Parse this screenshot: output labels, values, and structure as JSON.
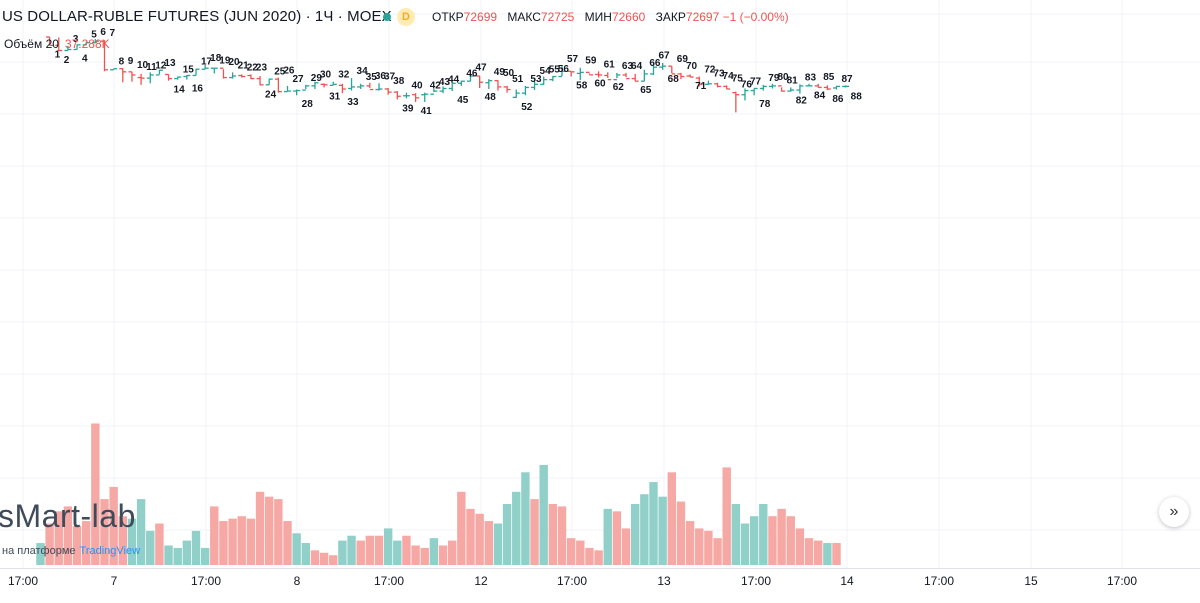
{
  "header": {
    "title": "US DOLLAR-RUBLE FUTURES (JUN 2020) · 1Ч · MOEX",
    "status_badge": "D",
    "ohlc": [
      {
        "label": "ОТКР",
        "value": "72699"
      },
      {
        "label": "МАКС",
        "value": "72725"
      },
      {
        "label": "МИН",
        "value": "72660"
      },
      {
        "label": "ЗАКР",
        "value": "72697 −1 (−0.00%)"
      }
    ]
  },
  "volume_legend": {
    "label": "Объём 20",
    "value": "37.288K"
  },
  "watermark": {
    "brand": "sMart-lab",
    "platform_prefix": "на платформе",
    "platform_name": "TradingView"
  },
  "scroll_button": {
    "glyph": "»"
  },
  "time_axis": {
    "labels": [
      "17:00",
      "7",
      "17:00",
      "8",
      "17:00",
      "12",
      "17:00",
      "13",
      "17:00",
      "14",
      "17:00",
      "15",
      "17:00"
    ]
  },
  "colors": {
    "up": "#26a69a",
    "down": "#ef5350",
    "up_volume": "#90d0c9",
    "down_volume": "#f6a8a4",
    "grid": "#f0f3fa"
  },
  "chart_data": {
    "type": "ohlc",
    "symbol": "US DOLLAR-RUBLE FUTURES (JUN 2020)",
    "interval": "1H",
    "exchange": "MOEX",
    "grid": true,
    "price_axis_visible": false,
    "bar_labels": [
      "1",
      "2",
      "3",
      "4",
      "5",
      "6",
      "7",
      "8",
      "9",
      "10",
      "11",
      "12",
      "13",
      "14",
      "15",
      "16",
      "17",
      "18",
      "19",
      "20",
      "21",
      "22",
      "23",
      "24",
      "25",
      "26",
      "27",
      "28",
      "29",
      "30",
      "31",
      "32",
      "33",
      "34",
      "35",
      "36",
      "37",
      "38",
      "39",
      "40",
      "41",
      "42",
      "43",
      "44",
      "45",
      "46",
      "47",
      "48",
      "49",
      "50",
      "51",
      "52",
      "53",
      "54",
      "55",
      "56",
      "57",
      "58",
      "59",
      "60",
      "61",
      "62",
      "63",
      "64",
      "65",
      "66",
      "67",
      "68",
      "69",
      "70",
      "71",
      "72",
      "73",
      "74",
      "75",
      "76",
      "77",
      "78",
      "79",
      "80",
      "81",
      "82",
      "83",
      "84",
      "85",
      "86",
      "87",
      "88"
    ],
    "bars": [
      [
        75000,
        75000,
        74840,
        74840
      ],
      [
        74840,
        74990,
        74730,
        74740
      ],
      [
        74740,
        74830,
        74740,
        74760
      ],
      [
        74760,
        74860,
        74760,
        74850
      ],
      [
        74850,
        74910,
        74840,
        74890
      ],
      [
        74890,
        74960,
        74880,
        74920
      ],
      [
        74920,
        74940,
        74340,
        74370
      ],
      [
        74370,
        74390,
        74370,
        74390
      ],
      [
        74390,
        74400,
        74130,
        74330
      ],
      [
        74330,
        74330,
        74140,
        74270
      ],
      [
        74220,
        74290,
        74080,
        74210
      ],
      [
        74210,
        74320,
        74110,
        74270
      ],
      [
        74270,
        74370,
        74280,
        74360
      ],
      [
        74280,
        74280,
        74160,
        74200
      ],
      [
        74200,
        74240,
        74180,
        74230
      ],
      [
        74240,
        74270,
        74180,
        74260
      ],
      [
        74260,
        74390,
        74260,
        74380
      ],
      [
        74380,
        74460,
        74380,
        74400
      ],
      [
        74400,
        74410,
        74300,
        74400
      ],
      [
        74400,
        74380,
        74200,
        74220
      ],
      [
        74220,
        74320,
        74200,
        74250
      ],
      [
        74260,
        74280,
        74220,
        74240
      ],
      [
        74260,
        74280,
        74190,
        74200
      ],
      [
        74200,
        74250,
        74070,
        74080
      ],
      [
        74080,
        74200,
        74080,
        74190
      ],
      [
        74190,
        74220,
        73930,
        73950
      ],
      [
        73950,
        74060,
        73950,
        73960
      ],
      [
        73960,
        73990,
        73880,
        73970
      ],
      [
        73980,
        74080,
        74000,
        74060
      ],
      [
        74060,
        74140,
        74000,
        74120
      ],
      [
        74090,
        74110,
        74030,
        74080
      ],
      [
        74070,
        74140,
        74070,
        74090
      ],
      [
        74070,
        74100,
        73920,
        74000
      ],
      [
        74010,
        74210,
        73970,
        74040
      ],
      [
        74040,
        74100,
        74000,
        74060
      ],
      [
        74060,
        74120,
        74020,
        73990
      ],
      [
        73990,
        74110,
        73970,
        74000
      ],
      [
        74000,
        74020,
        73890,
        73940
      ],
      [
        73940,
        73960,
        73800,
        73860
      ],
      [
        73870,
        73930,
        73820,
        73870
      ],
      [
        73890,
        73920,
        73750,
        73830
      ],
      [
        73890,
        73930,
        73750,
        73900
      ],
      [
        73900,
        74000,
        73940,
        73960
      ],
      [
        73960,
        74050,
        73920,
        74010
      ],
      [
        74010,
        74140,
        73960,
        74110
      ],
      [
        74110,
        74160,
        74060,
        74150
      ],
      [
        74150,
        74280,
        74150,
        74250
      ],
      [
        74250,
        74250,
        74020,
        74130
      ],
      [
        74120,
        74190,
        74000,
        74160
      ],
      [
        74160,
        74170,
        73970,
        74040
      ],
      [
        74040,
        74060,
        73930,
        73990
      ],
      [
        73840,
        73990,
        73830,
        73920
      ],
      [
        73920,
        74060,
        73880,
        74030
      ],
      [
        74030,
        74210,
        73980,
        74090
      ],
      [
        74090,
        74240,
        74080,
        74180
      ],
      [
        74180,
        74250,
        74150,
        74240
      ],
      [
        74240,
        74440,
        74250,
        74340
      ],
      [
        74340,
        74330,
        74240,
        74330
      ],
      [
        74300,
        74410,
        74170,
        74320
      ],
      [
        74320,
        74300,
        74280,
        74270
      ],
      [
        74280,
        74340,
        74220,
        74270
      ],
      [
        74260,
        74320,
        74210,
        74180
      ],
      [
        74180,
        74310,
        74210,
        74270
      ],
      [
        74270,
        74310,
        74230,
        74200
      ],
      [
        74200,
        74290,
        74150,
        74150
      ],
      [
        74150,
        74370,
        74150,
        74290
      ],
      [
        74290,
        74510,
        74270,
        74420
      ],
      [
        74420,
        74500,
        74370,
        74440
      ],
      [
        74440,
        74440,
        74300,
        74290
      ],
      [
        74290,
        74310,
        74190,
        74240
      ],
      [
        74250,
        74280,
        74230,
        74230
      ],
      [
        74210,
        74240,
        74050,
        74090
      ],
      [
        74090,
        74160,
        74080,
        74100
      ],
      [
        74100,
        74120,
        74030,
        74050
      ],
      [
        74050,
        74070,
        74000,
        74000
      ],
      [
        73930,
        73950,
        73550,
        73890
      ],
      [
        73890,
        74010,
        73780,
        73970
      ],
      [
        73970,
        74010,
        73880,
        74010
      ],
      [
        74010,
        74080,
        73970,
        74050
      ],
      [
        74050,
        74100,
        74010,
        74060
      ],
      [
        74060,
        74030,
        73950,
        73960
      ],
      [
        73960,
        74030,
        73950,
        73980
      ],
      [
        73980,
        74090,
        73910,
        74060
      ],
      [
        74060,
        74100,
        74050,
        74060
      ],
      [
        74060,
        74100,
        74030,
        74030
      ],
      [
        74030,
        74070,
        73980,
        74000
      ],
      [
        74020,
        74060,
        73990,
        74050
      ],
      [
        74050,
        74070,
        74030,
        74050
      ]
    ],
    "volume": [
      [
        9,
        1
      ],
      [
        17,
        0
      ],
      [
        22,
        0
      ],
      [
        24,
        0
      ],
      [
        16,
        0
      ],
      [
        18,
        0
      ],
      [
        58,
        0
      ],
      [
        27,
        0
      ],
      [
        32,
        0
      ],
      [
        20,
        0
      ],
      [
        19,
        1
      ],
      [
        27,
        1
      ],
      [
        14,
        1
      ],
      [
        17,
        0
      ],
      [
        8,
        1
      ],
      [
        7,
        1
      ],
      [
        10,
        1
      ],
      [
        14,
        1
      ],
      [
        7,
        1
      ],
      [
        24,
        0
      ],
      [
        18,
        0
      ],
      [
        19,
        0
      ],
      [
        20,
        0
      ],
      [
        19,
        0
      ],
      [
        30,
        0
      ],
      [
        28,
        0
      ],
      [
        27,
        0
      ],
      [
        18,
        0
      ],
      [
        13,
        1
      ],
      [
        9,
        1
      ],
      [
        6,
        0
      ],
      [
        5,
        0
      ],
      [
        4,
        0
      ],
      [
        10,
        1
      ],
      [
        12,
        1
      ],
      [
        10,
        0
      ],
      [
        12,
        0
      ],
      [
        12,
        0
      ],
      [
        15,
        1
      ],
      [
        10,
        1
      ],
      [
        12,
        0
      ],
      [
        8,
        0
      ],
      [
        7,
        0
      ],
      [
        11,
        1
      ],
      [
        8,
        0
      ],
      [
        10,
        0
      ],
      [
        30,
        0
      ],
      [
        23,
        0
      ],
      [
        21,
        0
      ],
      [
        18,
        0
      ],
      [
        17,
        1
      ],
      [
        25,
        1
      ],
      [
        30,
        1
      ],
      [
        38,
        1
      ],
      [
        27,
        0
      ],
      [
        41,
        1
      ],
      [
        25,
        0
      ],
      [
        24,
        0
      ],
      [
        11,
        0
      ],
      [
        10,
        0
      ],
      [
        7,
        0
      ],
      [
        6,
        0
      ],
      [
        23,
        1
      ],
      [
        22,
        0
      ],
      [
        15,
        0
      ],
      [
        25,
        1
      ],
      [
        29,
        1
      ],
      [
        34,
        1
      ],
      [
        28,
        1
      ],
      [
        38,
        0
      ],
      [
        26,
        0
      ],
      [
        18,
        0
      ],
      [
        15,
        0
      ],
      [
        14,
        0
      ],
      [
        11,
        0
      ],
      [
        40,
        0
      ],
      [
        25,
        1
      ],
      [
        17,
        1
      ],
      [
        20,
        1
      ],
      [
        25,
        1
      ],
      [
        20,
        0
      ],
      [
        23,
        0
      ],
      [
        20,
        0
      ],
      [
        15,
        0
      ],
      [
        11,
        0
      ],
      [
        10,
        0
      ],
      [
        9,
        1
      ],
      [
        9,
        0
      ]
    ]
  }
}
